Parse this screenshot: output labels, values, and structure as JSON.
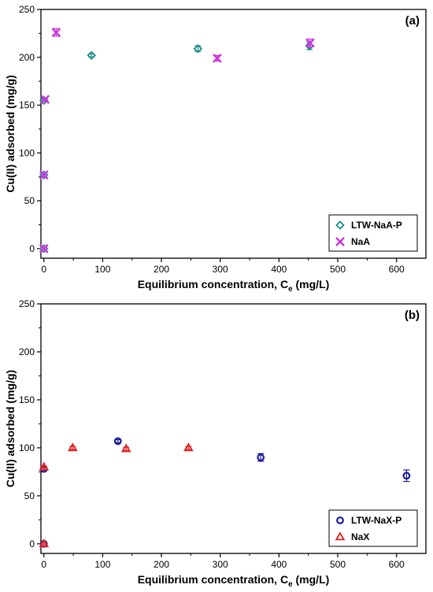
{
  "chart_data": [
    {
      "type": "scatter",
      "panel_label": "(a)",
      "xlabel": "Equilibrium concentration, C",
      "xlabel_sub": "e",
      "xlabel_unit": " (mg/L)",
      "ylabel": "Cu(II) adsorbed (mg/g)",
      "xlim": [
        -5,
        650
      ],
      "ylim": [
        -10,
        250
      ],
      "xticks": [
        0,
        100,
        200,
        300,
        400,
        500,
        600
      ],
      "yticks": [
        0,
        50,
        100,
        150,
        200,
        250
      ],
      "grid": false,
      "legend_position": "bottom-right",
      "series": [
        {
          "name": "LTW-NaA-P",
          "marker": "diamond-open",
          "color": "#1a8a8a",
          "points": [
            {
              "x": 0,
              "y": 0,
              "err": 1
            },
            {
              "x": 0,
              "y": 77,
              "err": 1
            },
            {
              "x": 0,
              "y": 155,
              "err": 1
            },
            {
              "x": 81,
              "y": 202,
              "err": 1.5
            },
            {
              "x": 262,
              "y": 209,
              "err": 3
            },
            {
              "x": 452,
              "y": 212,
              "err": 4
            }
          ]
        },
        {
          "name": "NaA",
          "marker": "x",
          "color": "#cc33dd",
          "points": [
            {
              "x": 0,
              "y": 0,
              "err": 1
            },
            {
              "x": 0,
              "y": 77,
              "err": 1.5
            },
            {
              "x": 2,
              "y": 156,
              "err": 1
            },
            {
              "x": 21,
              "y": 226,
              "err": 4
            },
            {
              "x": 295,
              "y": 199,
              "err": 3
            },
            {
              "x": 453,
              "y": 215,
              "err": 4
            }
          ]
        }
      ]
    },
    {
      "type": "scatter",
      "panel_label": "(b)",
      "xlabel": "Equilibrium concentration, C",
      "xlabel_sub": "e",
      "xlabel_unit": " (mg/L)",
      "ylabel": "Cu(II) adsorbed (mg/g)",
      "xlim": [
        -5,
        650
      ],
      "ylim": [
        -10,
        250
      ],
      "xticks": [
        0,
        100,
        200,
        300,
        400,
        500,
        600
      ],
      "yticks": [
        0,
        50,
        100,
        150,
        200,
        250
      ],
      "grid": false,
      "legend_position": "bottom-right",
      "series": [
        {
          "name": "LTW-NaX-P",
          "marker": "circle-open",
          "color": "#1a1a99",
          "points": [
            {
              "x": 0,
              "y": 0,
              "err": 1
            },
            {
              "x": 0,
              "y": 78,
              "err": 1.5
            },
            {
              "x": 126,
              "y": 107,
              "err": 1.5
            },
            {
              "x": 369,
              "y": 90,
              "err": 4
            },
            {
              "x": 617,
              "y": 71,
              "err": 6
            }
          ]
        },
        {
          "name": "NaX",
          "marker": "triangle-open",
          "color": "#e02020",
          "points": [
            {
              "x": 0,
              "y": 0,
              "err": 1
            },
            {
              "x": 0,
              "y": 80,
              "err": 1
            },
            {
              "x": 49,
              "y": 100,
              "err": 1.5
            },
            {
              "x": 140,
              "y": 99,
              "err": 1.5
            },
            {
              "x": 246,
              "y": 100,
              "err": 1.5
            }
          ]
        }
      ]
    }
  ]
}
